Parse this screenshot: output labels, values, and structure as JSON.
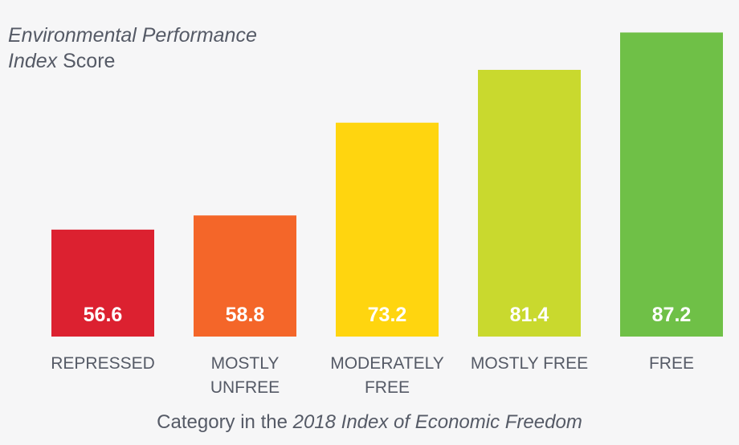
{
  "chart_data": {
    "type": "bar",
    "title_line1_italic": "Environmental Performance",
    "title_line2_italic": "Index",
    "title_line2_rest": " Score",
    "xlabel_prefix": "Category in the ",
    "xlabel_italic": "2018 Index of Economic Freedom",
    "categories": [
      [
        "REPRESSED"
      ],
      [
        "MOSTLY",
        "UNFREE"
      ],
      [
        "MODERATELY",
        "FREE"
      ],
      [
        "MOSTLY FREE"
      ],
      [
        "FREE"
      ]
    ],
    "values": [
      56.6,
      58.8,
      73.2,
      81.4,
      87.2
    ],
    "value_labels": [
      "56.6",
      "58.8",
      "73.2",
      "81.4",
      "87.2"
    ],
    "colors": [
      "#dc2130",
      "#f46629",
      "#ffd50f",
      "#c9d92e",
      "#6fc047"
    ],
    "ylim": [
      40,
      90
    ],
    "grid": false,
    "legend": "none"
  }
}
